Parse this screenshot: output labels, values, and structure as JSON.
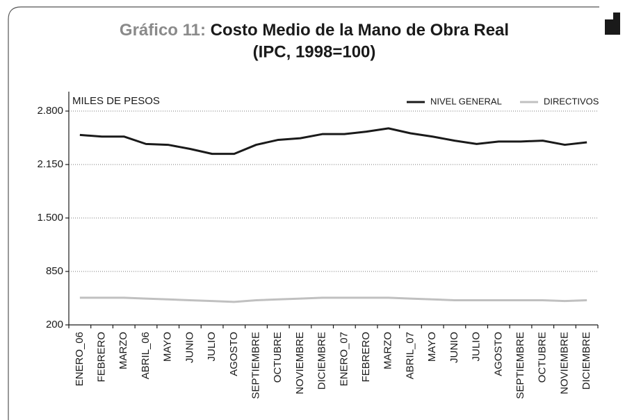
{
  "chart_data": {
    "type": "line",
    "title_label": "Gráfico 11:",
    "title": "Costo Medio de la Mano de Obra Real",
    "subtitle": "(IPC, 1998=100)",
    "y_label": "MILES DE PESOS",
    "categories": [
      "ENERO_06",
      "FEBRERO",
      "MARZO",
      "ABRIL_06",
      "MAYO",
      "JUNIO",
      "JULIO",
      "AGOSTO",
      "SEPTIEMBRE",
      "OCTUBRE",
      "NOVIEMBRE",
      "DICIEMBRE",
      "ENERO_07",
      "FEBRERO",
      "MARZO",
      "ABRIL_07",
      "MAYO",
      "JUNIO",
      "JULIO",
      "AGOSTO",
      "SEPTIEMBRE",
      "OCTUBRE",
      "NOVIEMBRE",
      "DICIEMBRE"
    ],
    "series": [
      {
        "name": "NIVEL GENERAL",
        "color": "#1a1a1a",
        "values": [
          2510,
          2490,
          2490,
          2400,
          2390,
          2340,
          2280,
          2280,
          2390,
          2450,
          2470,
          2520,
          2520,
          2550,
          2590,
          2530,
          2490,
          2440,
          2400,
          2430,
          2430,
          2440,
          2390,
          2420
        ]
      },
      {
        "name": "DIRECTIVOS",
        "color": "#c0c0c0",
        "values": [
          530,
          530,
          530,
          520,
          510,
          500,
          490,
          480,
          500,
          510,
          520,
          530,
          530,
          530,
          530,
          520,
          510,
          500,
          500,
          500,
          500,
          500,
          490,
          500
        ]
      }
    ],
    "ylim": [
      200,
      2800
    ],
    "yticks": [
      200,
      850,
      {
        "value": 1500,
        "label": "1.500"
      },
      {
        "value": 2150,
        "label": "2.150"
      },
      {
        "value": 2800,
        "label": "2.800"
      }
    ],
    "grid": true,
    "legend": "top-right"
  }
}
